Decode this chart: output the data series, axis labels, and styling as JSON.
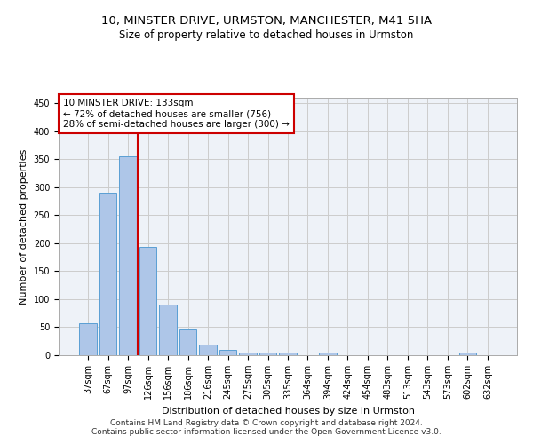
{
  "title_line1": "10, MINSTER DRIVE, URMSTON, MANCHESTER, M41 5HA",
  "title_line2": "Size of property relative to detached houses in Urmston",
  "xlabel": "Distribution of detached houses by size in Urmston",
  "ylabel": "Number of detached properties",
  "footnote1": "Contains HM Land Registry data © Crown copyright and database right 2024.",
  "footnote2": "Contains public sector information licensed under the Open Government Licence v3.0.",
  "annotation_line1": "10 MINSTER DRIVE: 133sqm",
  "annotation_line2": "← 72% of detached houses are smaller (756)",
  "annotation_line3": "28% of semi-detached houses are larger (300) →",
  "bar_labels": [
    "37sqm",
    "67sqm",
    "97sqm",
    "126sqm",
    "156sqm",
    "186sqm",
    "216sqm",
    "245sqm",
    "275sqm",
    "305sqm",
    "335sqm",
    "364sqm",
    "394sqm",
    "424sqm",
    "454sqm",
    "483sqm",
    "513sqm",
    "543sqm",
    "573sqm",
    "602sqm",
    "632sqm"
  ],
  "bar_values": [
    57,
    290,
    355,
    193,
    90,
    46,
    19,
    9,
    5,
    5,
    5,
    0,
    5,
    0,
    0,
    0,
    0,
    0,
    0,
    5,
    0
  ],
  "bar_color": "#aec6e8",
  "bar_edge_color": "#5a9fd4",
  "vline_color": "#cc0000",
  "vline_x_index": 3,
  "ylim": [
    0,
    460
  ],
  "yticks": [
    0,
    50,
    100,
    150,
    200,
    250,
    300,
    350,
    400,
    450
  ],
  "grid_color": "#cccccc",
  "bg_color": "#eef2f8",
  "annotation_box_color": "#cc0000",
  "title1_fontsize": 9.5,
  "title2_fontsize": 8.5,
  "axis_fontsize": 8,
  "tick_fontsize": 7,
  "footnote_fontsize": 6.5
}
